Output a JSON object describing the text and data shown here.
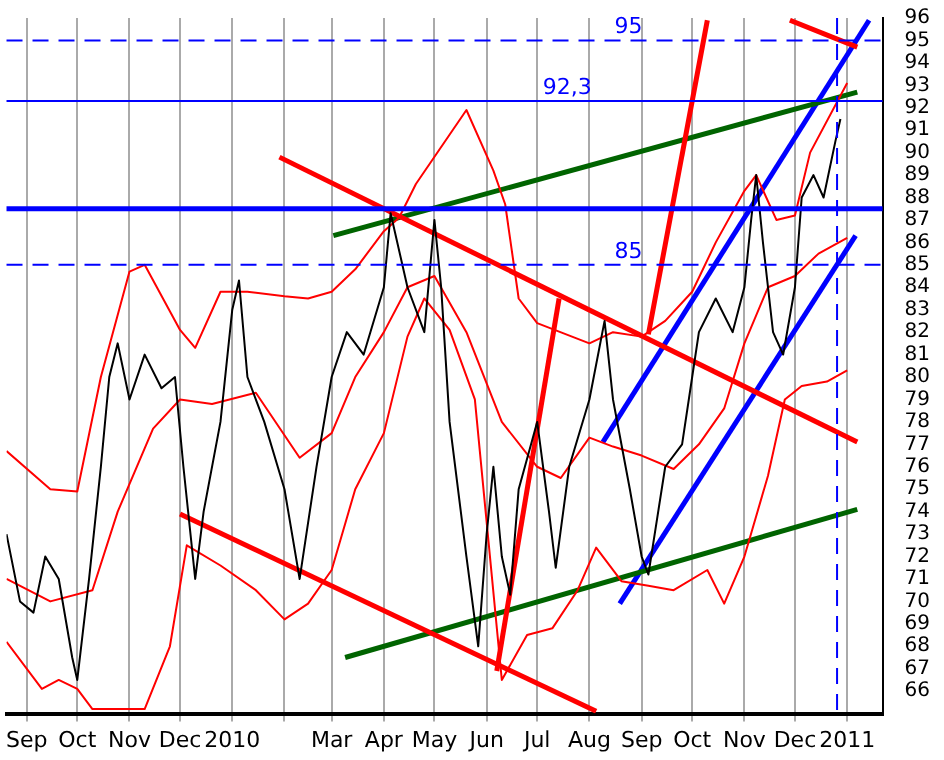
{
  "chart_data": {
    "type": "line",
    "xlim": [
      "2009-08-20",
      "2011-01-22"
    ],
    "xticks": [
      {
        "value": "2009-09-01",
        "label": "Sep"
      },
      {
        "value": "2009-10-01",
        "label": "Oct"
      },
      {
        "value": "2009-11-01",
        "label": "Nov"
      },
      {
        "value": "2009-12-01",
        "label": "Dec"
      },
      {
        "value": "2010-01-01",
        "label": "2010"
      },
      {
        "value": "2010-02-01",
        "label": null
      },
      {
        "value": "2010-03-01",
        "label": "Mar"
      },
      {
        "value": "2010-04-01",
        "label": "Apr"
      },
      {
        "value": "2010-05-01",
        "label": "May"
      },
      {
        "value": "2010-06-01",
        "label": "Jun"
      },
      {
        "value": "2010-07-01",
        "label": "Jul"
      },
      {
        "value": "2010-08-01",
        "label": "Aug"
      },
      {
        "value": "2010-09-01",
        "label": "Sep"
      },
      {
        "value": "2010-10-01",
        "label": "Oct"
      },
      {
        "value": "2010-11-01",
        "label": "Nov"
      },
      {
        "value": "2010-12-01",
        "label": "Dec"
      },
      {
        "value": "2011-01-01",
        "label": "2011"
      }
    ],
    "ylim": [
      65,
      96
    ],
    "yticks": [
      66,
      67,
      68,
      69,
      70,
      71,
      72,
      73,
      74,
      75,
      76,
      77,
      78,
      79,
      80,
      81,
      82,
      83,
      84,
      85,
      86,
      87,
      88,
      89,
      90,
      91,
      92,
      93,
      94,
      95,
      96
    ],
    "grid": "x",
    "legend": false,
    "marker": "none",
    "series": [
      {
        "color": "#000000",
        "x": [
          "2009-08-20",
          "2009-08-28",
          "2009-09-05",
          "2009-09-12",
          "2009-09-20",
          "2009-09-28",
          "2009-10-01",
          "2009-10-08",
          "2009-10-15",
          "2009-10-20",
          "2009-10-25",
          "2009-11-01",
          "2009-11-10",
          "2009-11-20",
          "2009-11-28",
          "2009-12-03",
          "2009-12-10",
          "2009-12-15",
          "2009-12-25",
          "2010-01-01",
          "2010-01-05",
          "2010-01-10",
          "2010-01-20",
          "2010-02-01",
          "2010-02-10",
          "2010-02-20",
          "2010-03-01",
          "2010-03-10",
          "2010-03-20",
          "2010-04-01",
          "2010-04-05",
          "2010-04-15",
          "2010-04-25",
          "2010-05-01",
          "2010-05-05",
          "2010-05-10",
          "2010-05-20",
          "2010-05-27",
          "2010-06-01",
          "2010-06-05",
          "2010-06-10",
          "2010-06-15",
          "2010-06-20",
          "2010-07-01",
          "2010-07-08",
          "2010-07-12",
          "2010-07-20",
          "2010-08-01",
          "2010-08-10",
          "2010-08-15",
          "2010-08-25",
          "2010-09-01",
          "2010-09-05",
          "2010-09-15",
          "2010-09-25",
          "2010-10-01",
          "2010-10-05",
          "2010-10-15",
          "2010-10-25",
          "2010-11-01",
          "2010-11-05",
          "2010-11-08",
          "2010-11-12",
          "2010-11-18",
          "2010-11-24",
          "2010-12-01",
          "2010-12-05",
          "2010-12-12",
          "2010-12-18",
          "2010-12-25",
          "2010-12-28"
        ],
        "values": [
          73,
          70,
          69.5,
          72,
          71,
          67.5,
          66.5,
          71,
          76,
          80,
          81.5,
          79,
          81,
          79.5,
          80,
          76,
          71,
          74,
          78,
          83,
          84.3,
          80,
          78,
          75,
          71,
          76,
          80,
          82,
          81,
          84,
          87.3,
          84,
          82,
          87,
          84,
          78,
          72,
          68,
          73,
          76,
          72,
          70.3,
          75,
          78,
          74,
          71.5,
          76,
          79,
          82.5,
          79,
          75,
          72,
          71.2,
          76,
          77,
          80,
          82,
          83.5,
          82,
          84,
          87,
          89,
          86,
          82,
          81,
          84,
          88,
          89,
          88,
          90.5,
          91.5
        ]
      },
      {
        "color": "#ff0000",
        "x": [
          "2009-08-20",
          "2009-09-15",
          "2009-10-01",
          "2009-10-15",
          "2009-11-01",
          "2009-11-10",
          "2009-12-01",
          "2009-12-10",
          "2009-12-25",
          "2010-01-10",
          "2010-02-01",
          "2010-02-15",
          "2010-03-01",
          "2010-03-15",
          "2010-04-01",
          "2010-04-10",
          "2010-04-20",
          "2010-05-20",
          "2010-06-05",
          "2010-06-12",
          "2010-06-20",
          "2010-07-01",
          "2010-08-01",
          "2010-08-15",
          "2010-09-01",
          "2010-09-15",
          "2010-10-01",
          "2010-10-15",
          "2010-11-01",
          "2010-11-08",
          "2010-11-20",
          "2010-12-01",
          "2010-12-10",
          "2011-01-01"
        ],
        "values": [
          76.7,
          75,
          74.9,
          80,
          84.7,
          85,
          82.1,
          81.3,
          83.8,
          83.8,
          83.6,
          83.5,
          83.8,
          84.8,
          86.5,
          87.1,
          88.6,
          91.9,
          89.2,
          87.7,
          83.5,
          82.4,
          81.5,
          82,
          81.8,
          82.5,
          83.8,
          86,
          88.3,
          89,
          87,
          87.2,
          90,
          93.1
        ]
      },
      {
        "color": "#ff0000",
        "x": [
          "2009-08-20",
          "2009-09-15",
          "2009-10-10",
          "2009-10-25",
          "2009-11-15",
          "2009-12-01",
          "2009-12-20",
          "2010-01-15",
          "2010-02-10",
          "2010-03-01",
          "2010-03-15",
          "2010-04-01",
          "2010-04-15",
          "2010-05-01",
          "2010-05-20",
          "2010-06-10",
          "2010-07-01",
          "2010-07-15",
          "2010-08-01",
          "2010-08-15",
          "2010-09-01",
          "2010-09-20",
          "2010-10-05",
          "2010-10-20",
          "2010-11-01",
          "2010-11-15",
          "2010-12-01",
          "2010-12-15",
          "2011-01-01"
        ],
        "values": [
          71,
          70,
          70.5,
          74,
          77.7,
          79,
          78.8,
          79.3,
          76.4,
          77.5,
          80,
          82,
          84,
          84.5,
          82,
          78,
          76,
          75.5,
          77.3,
          76.9,
          76.5,
          75.9,
          77,
          78.6,
          81.5,
          84,
          84.5,
          85.5,
          86.2
        ]
      },
      {
        "color": "#ff0000",
        "x": [
          "2009-08-20",
          "2009-09-10",
          "2009-09-20",
          "2009-10-01",
          "2009-10-10",
          "2009-11-10",
          "2009-11-25",
          "2009-12-05",
          "2009-12-25",
          "2010-01-15",
          "2010-02-01",
          "2010-02-15",
          "2010-03-01",
          "2010-03-15",
          "2010-04-01",
          "2010-04-15",
          "2010-04-25",
          "2010-05-10",
          "2010-05-25",
          "2010-06-10",
          "2010-06-25",
          "2010-07-10",
          "2010-07-25",
          "2010-08-05",
          "2010-08-20",
          "2010-09-05",
          "2010-09-20",
          "2010-10-10",
          "2010-10-20",
          "2010-11-01",
          "2010-11-15",
          "2010-11-25",
          "2010-12-05",
          "2010-12-20",
          "2011-01-01"
        ],
        "values": [
          68.2,
          66.1,
          66.5,
          66.1,
          65.2,
          65.2,
          68,
          72.5,
          71.6,
          70.5,
          69.2,
          69.9,
          71.4,
          75,
          77.5,
          81.8,
          83.5,
          82.1,
          79,
          66.5,
          68.5,
          68.8,
          70.5,
          72.4,
          70.9,
          70.7,
          70.5,
          71.4,
          69.9,
          72,
          75.6,
          79,
          79.6,
          79.8,
          80.3
        ]
      },
      {
        "color": "#ff0000",
        "x": [
          "2010-01-29",
          "2011-01-07"
        ],
        "values": [
          89.8,
          77.1
        ]
      },
      {
        "color": "#ff0000",
        "x": [
          "2009-12-01",
          "2010-08-05"
        ],
        "values": [
          73.9,
          65.1
        ]
      },
      {
        "color": "#ff0000",
        "x": [
          "2010-06-07",
          "2010-07-14"
        ],
        "values": [
          66.9,
          83.5
        ]
      },
      {
        "color": "#ff0000",
        "x": [
          "2010-09-05",
          "2010-10-10"
        ],
        "values": [
          81.9,
          95.9
        ]
      },
      {
        "color": "#ff0000",
        "x": [
          "2010-11-28",
          "2011-01-07"
        ],
        "values": [
          95.9,
          94.7
        ]
      },
      {
        "color": "#006400",
        "x": [
          "2010-03-02",
          "2011-01-07"
        ],
        "values": [
          86.3,
          92.7
        ]
      },
      {
        "color": "#006400",
        "x": [
          "2010-03-09",
          "2011-01-07"
        ],
        "values": [
          67.5,
          74.1
        ]
      },
      {
        "color": "#0000ff",
        "x": [
          "2010-08-09",
          "2011-01-14"
        ],
        "values": [
          77.1,
          95.9
        ]
      },
      {
        "color": "#0000ff",
        "x": [
          "2010-08-19",
          "2011-01-06"
        ],
        "values": [
          69.9,
          86.3
        ]
      }
    ],
    "ref_lines": [
      {
        "axis": "y",
        "value": 95,
        "label": "95",
        "color": "#0000ff",
        "line_style": "dashed"
      },
      {
        "axis": "y",
        "value": 92.3,
        "label": "92,3",
        "color": "#0000ff",
        "line_style": "solid"
      },
      {
        "axis": "y",
        "value": 87.5,
        "color": "#0000ff",
        "line_style": "solid"
      },
      {
        "axis": "y",
        "value": 85,
        "label": "85",
        "color": "#0000ff",
        "line_style": "dashed"
      },
      {
        "axis": "x",
        "value": "2010-12-26",
        "color": "#0000ff",
        "line_style": "dashed"
      }
    ]
  }
}
